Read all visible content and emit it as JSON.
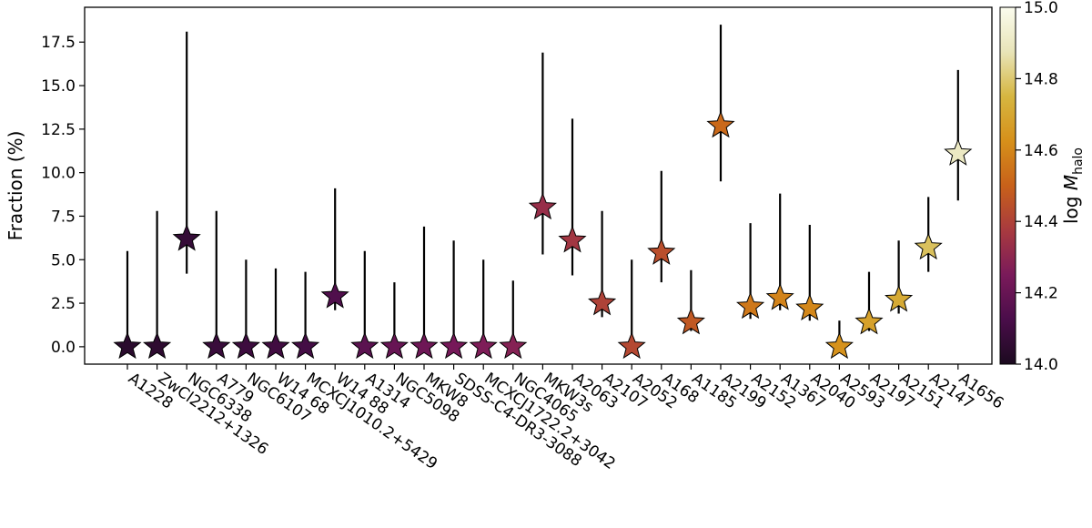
{
  "chart_data": {
    "type": "scatter",
    "ylabel": "Fraction (%)",
    "ylim": [
      -1.0,
      19.5
    ],
    "yticks": [
      0.0,
      2.5,
      5.0,
      7.5,
      10.0,
      12.5,
      15.0,
      17.5
    ],
    "ytick_labels": [
      "0.0",
      "2.5",
      "5.0",
      "7.5",
      "10.0",
      "12.5",
      "15.0",
      "17.5"
    ],
    "colorbar": {
      "label_main": "log",
      "label_var": "M",
      "label_sub": "halo",
      "range": [
        14.0,
        15.0
      ],
      "ticks": [
        14.0,
        14.2,
        14.4,
        14.6,
        14.8,
        15.0
      ],
      "tick_labels": [
        "14.0",
        "14.2",
        "14.4",
        "14.6",
        "14.8",
        "15.0"
      ],
      "colormap": "inferno-like",
      "stops": [
        "#1b0a1f",
        "#4a0d4a",
        "#7a1a5a",
        "#a83a3f",
        "#c8611a",
        "#d6901a",
        "#d6b640",
        "#e8e4b8",
        "#fbfcee"
      ]
    },
    "marker": "star",
    "points": [
      {
        "name": "A1228",
        "y": 0.0,
        "err_low": 0.0,
        "err_high": 5.5,
        "logM": 14.04
      },
      {
        "name": "ZwCl2212+1326",
        "y": 0.0,
        "err_low": 0.0,
        "err_high": 7.8,
        "logM": 14.05
      },
      {
        "name": "NGC6338",
        "y": 6.2,
        "err_low": 4.2,
        "err_high": 18.1,
        "logM": 14.07
      },
      {
        "name": "A779",
        "y": 0.0,
        "err_low": 0.0,
        "err_high": 7.8,
        "logM": 14.08
      },
      {
        "name": "NGC6107",
        "y": 0.0,
        "err_low": 0.0,
        "err_high": 5.0,
        "logM": 14.09
      },
      {
        "name": "W14 68",
        "y": 0.0,
        "err_low": 0.0,
        "err_high": 4.5,
        "logM": 14.1
      },
      {
        "name": "MCXCJ1010.2+5429",
        "y": 0.0,
        "err_low": 0.0,
        "err_high": 4.3,
        "logM": 14.11
      },
      {
        "name": "W14 88",
        "y": 2.9,
        "err_low": 2.1,
        "err_high": 9.1,
        "logM": 14.14
      },
      {
        "name": "A1314",
        "y": 0.0,
        "err_low": 0.0,
        "err_high": 5.5,
        "logM": 14.17
      },
      {
        "name": "NGC5098",
        "y": 0.0,
        "err_low": 0.0,
        "err_high": 3.7,
        "logM": 14.2
      },
      {
        "name": "MKW8",
        "y": 0.0,
        "err_low": 0.0,
        "err_high": 6.9,
        "logM": 14.22
      },
      {
        "name": "SDSS-C4-DR3-3088",
        "y": 0.0,
        "err_low": 0.0,
        "err_high": 6.1,
        "logM": 14.24
      },
      {
        "name": "MCXCJ1722.2+3042",
        "y": 0.0,
        "err_low": 0.0,
        "err_high": 5.0,
        "logM": 14.26
      },
      {
        "name": "NGC4065",
        "y": 0.0,
        "err_low": 0.0,
        "err_high": 3.8,
        "logM": 14.28
      },
      {
        "name": "MKW3s",
        "y": 8.0,
        "err_low": 5.3,
        "err_high": 16.9,
        "logM": 14.33
      },
      {
        "name": "A2063",
        "y": 6.1,
        "err_low": 4.1,
        "err_high": 13.1,
        "logM": 14.36
      },
      {
        "name": "A2107",
        "y": 2.5,
        "err_low": 1.7,
        "err_high": 7.8,
        "logM": 14.4
      },
      {
        "name": "A2052",
        "y": 0.0,
        "err_low": 0.0,
        "err_high": 5.0,
        "logM": 14.42
      },
      {
        "name": "A168",
        "y": 5.4,
        "err_low": 3.7,
        "err_high": 10.1,
        "logM": 14.44
      },
      {
        "name": "A1185",
        "y": 1.4,
        "err_low": 0.9,
        "err_high": 4.4,
        "logM": 14.47
      },
      {
        "name": "A2199",
        "y": 12.7,
        "err_low": 9.5,
        "err_high": 18.5,
        "logM": 14.52
      },
      {
        "name": "A2152",
        "y": 2.3,
        "err_low": 1.6,
        "err_high": 7.1,
        "logM": 14.56
      },
      {
        "name": "A1367",
        "y": 2.8,
        "err_low": 2.1,
        "err_high": 8.8,
        "logM": 14.59
      },
      {
        "name": "A2040",
        "y": 2.2,
        "err_low": 1.5,
        "err_high": 7.0,
        "logM": 14.6
      },
      {
        "name": "A2593",
        "y": 0.0,
        "err_low": 0.0,
        "err_high": 1.5,
        "logM": 14.63
      },
      {
        "name": "A2197",
        "y": 1.4,
        "err_low": 0.9,
        "err_high": 4.3,
        "logM": 14.68
      },
      {
        "name": "A2151",
        "y": 2.7,
        "err_low": 1.9,
        "err_high": 6.1,
        "logM": 14.71
      },
      {
        "name": "A2147",
        "y": 5.7,
        "err_low": 4.3,
        "err_high": 8.6,
        "logM": 14.78
      },
      {
        "name": "A1656",
        "y": 11.1,
        "err_low": 8.4,
        "err_high": 15.9,
        "logM": 14.9
      }
    ]
  }
}
